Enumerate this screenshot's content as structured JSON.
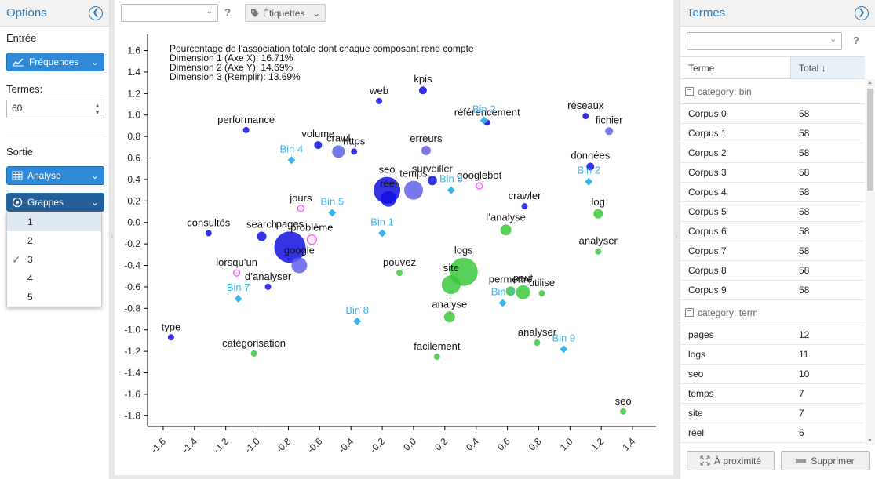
{
  "left": {
    "title": "Options",
    "collapse_icon": "chevron-left-circle-icon",
    "input_label": "Entrée",
    "input_button": "Fréquences",
    "terms_label": "Termes:",
    "terms_value": "60",
    "output_label": "Sortie",
    "analysis_button": "Analyse",
    "clusters_button": "Grappes",
    "cluster_options": [
      "1",
      "2",
      "3",
      "4",
      "5"
    ],
    "selected_cluster": "3"
  },
  "center": {
    "tags_button": "Étiquettes",
    "help": "?"
  },
  "right": {
    "title": "Termes",
    "help": "?",
    "col_term": "Terme",
    "col_total": "Total",
    "groups": [
      {
        "label": "category: bin",
        "rows": [
          {
            "term": "Corpus 0",
            "total": "58"
          },
          {
            "term": "Corpus 1",
            "total": "58"
          },
          {
            "term": "Corpus 2",
            "total": "58"
          },
          {
            "term": "Corpus 3",
            "total": "58"
          },
          {
            "term": "Corpus 4",
            "total": "58"
          },
          {
            "term": "Corpus 5",
            "total": "58"
          },
          {
            "term": "Corpus 6",
            "total": "58"
          },
          {
            "term": "Corpus 7",
            "total": "58"
          },
          {
            "term": "Corpus 8",
            "total": "58"
          },
          {
            "term": "Corpus 9",
            "total": "58"
          }
        ]
      },
      {
        "label": "category: term",
        "rows": [
          {
            "term": "pages",
            "total": "12"
          },
          {
            "term": "logs",
            "total": "11"
          },
          {
            "term": "seo",
            "total": "10"
          },
          {
            "term": "temps",
            "total": "7"
          },
          {
            "term": "site",
            "total": "7"
          },
          {
            "term": "réel",
            "total": "6"
          }
        ]
      }
    ],
    "proximity_button": "À proximité",
    "delete_button": "Supprimer"
  },
  "chart_data": {
    "type": "scatter",
    "header_lines": [
      "Pourcentage de l’association totale dont chaque composant rend compte",
      "Dimension 1 (Axe X): 16.71%",
      "Dimension 2 (Axe Y): 14.69%",
      "Dimension 3 (Remplir): 13.69%"
    ],
    "xlim": [
      -1.7,
      1.55
    ],
    "ylim": [
      -1.9,
      1.75
    ],
    "xticks": [
      -1.6,
      -1.4,
      -1.2,
      -1.0,
      -0.8,
      -0.6,
      -0.4,
      -0.2,
      0.0,
      0.2,
      0.4,
      0.6,
      0.8,
      1.0,
      1.2,
      1.4
    ],
    "yticks": [
      -1.8,
      -1.6,
      -1.4,
      -1.2,
      -1.0,
      -0.8,
      -0.6,
      -0.4,
      -0.2,
      0.0,
      0.2,
      0.4,
      0.6,
      0.8,
      1.0,
      1.2,
      1.4,
      1.6
    ],
    "colors": {
      "blue": "#1010e0",
      "blue_light": "#6060e8",
      "green": "#3cc83c",
      "pink": "#ff50ff",
      "bin": "#38b4ec"
    },
    "terms": [
      {
        "label": "web",
        "x": -0.22,
        "y": 1.13,
        "r": 4,
        "color": "blue"
      },
      {
        "label": "kpis",
        "x": 0.06,
        "y": 1.23,
        "r": 5,
        "color": "blue"
      },
      {
        "label": "référencement",
        "x": 0.47,
        "y": 0.93,
        "r": 4,
        "color": "blue"
      },
      {
        "label": "réseaux",
        "x": 1.1,
        "y": 0.99,
        "r": 4,
        "color": "blue"
      },
      {
        "label": "fichier",
        "x": 1.25,
        "y": 0.85,
        "r": 5,
        "color": "blue_light"
      },
      {
        "label": "performance",
        "x": -1.07,
        "y": 0.86,
        "r": 4,
        "color": "blue"
      },
      {
        "label": "volume",
        "x": -0.61,
        "y": 0.72,
        "r": 5,
        "color": "blue"
      },
      {
        "label": "crawl",
        "x": -0.48,
        "y": 0.66,
        "r": 8,
        "color": "blue_light"
      },
      {
        "label": "https",
        "x": -0.38,
        "y": 0.66,
        "r": 4,
        "color": "blue"
      },
      {
        "label": "erreurs",
        "x": 0.08,
        "y": 0.67,
        "r": 6,
        "color": "blue_light"
      },
      {
        "label": "données",
        "x": 1.13,
        "y": 0.52,
        "r": 5,
        "color": "blue"
      },
      {
        "label": "surveiller",
        "x": 0.12,
        "y": 0.39,
        "r": 6,
        "color": "blue"
      },
      {
        "label": "seo",
        "x": -0.17,
        "y": 0.3,
        "r": 17,
        "color": "blue"
      },
      {
        "label": "réel",
        "x": -0.16,
        "y": 0.22,
        "r": 10,
        "color": "blue"
      },
      {
        "label": "temps",
        "x": 0.0,
        "y": 0.3,
        "r": 12,
        "color": "blue_light"
      },
      {
        "label": "googlebot",
        "x": 0.42,
        "y": 0.34,
        "r": 4,
        "color": "pink"
      },
      {
        "label": "crawler",
        "x": 0.71,
        "y": 0.15,
        "r": 4,
        "color": "blue"
      },
      {
        "label": "jours",
        "x": -0.72,
        "y": 0.13,
        "r": 4,
        "color": "pink"
      },
      {
        "label": "log",
        "x": 1.18,
        "y": 0.08,
        "r": 6,
        "color": "green"
      },
      {
        "label": "consultés",
        "x": -1.31,
        "y": -0.1,
        "r": 4,
        "color": "blue"
      },
      {
        "label": "search",
        "x": -0.97,
        "y": -0.13,
        "r": 6,
        "color": "blue"
      },
      {
        "label": "pages",
        "x": -0.79,
        "y": -0.23,
        "r": 20,
        "color": "blue"
      },
      {
        "label": "problème",
        "x": -0.65,
        "y": -0.16,
        "r": 6,
        "color": "pink"
      },
      {
        "label": "google",
        "x": -0.73,
        "y": -0.4,
        "r": 10,
        "color": "blue_light"
      },
      {
        "label": "l’analyse",
        "x": 0.59,
        "y": -0.07,
        "r": 7,
        "color": "green"
      },
      {
        "label": "analyser",
        "x": 1.18,
        "y": -0.27,
        "r": 4,
        "color": "green"
      },
      {
        "label": "lorsqu’un",
        "x": -1.13,
        "y": -0.47,
        "r": 4,
        "color": "pink"
      },
      {
        "label": "d’analyser",
        "x": -0.93,
        "y": -0.6,
        "r": 4,
        "color": "blue"
      },
      {
        "label": "pouvez",
        "x": -0.09,
        "y": -0.47,
        "r": 4,
        "color": "green"
      },
      {
        "label": "logs",
        "x": 0.32,
        "y": -0.46,
        "r": 18,
        "color": "green"
      },
      {
        "label": "site",
        "x": 0.24,
        "y": -0.58,
        "r": 12,
        "color": "green"
      },
      {
        "label": "permettre",
        "x": 0.62,
        "y": -0.64,
        "r": 6,
        "color": "green"
      },
      {
        "label": "peut",
        "x": 0.7,
        "y": -0.65,
        "r": 9,
        "color": "green"
      },
      {
        "label": "utilise",
        "x": 0.82,
        "y": -0.66,
        "r": 4,
        "color": "green"
      },
      {
        "label": "analyse",
        "x": 0.23,
        "y": -0.88,
        "r": 7,
        "color": "green"
      },
      {
        "label": "type",
        "x": -1.55,
        "y": -1.07,
        "r": 4,
        "color": "blue"
      },
      {
        "label": "catégorisation",
        "x": -1.02,
        "y": -1.22,
        "r": 4,
        "color": "green"
      },
      {
        "label": "facilement",
        "x": 0.15,
        "y": -1.25,
        "r": 4,
        "color": "green"
      },
      {
        "label": "analyser",
        "x": 0.79,
        "y": -1.12,
        "r": 4,
        "color": "green"
      },
      {
        "label": "seo",
        "x": 1.34,
        "y": -1.76,
        "r": 4,
        "color": "green"
      }
    ],
    "bins": [
      {
        "label": "Bin 2",
        "x": 0.45,
        "y": 0.95
      },
      {
        "label": "Bin 4",
        "x": -0.78,
        "y": 0.58
      },
      {
        "label": "Bin 6",
        "x": 0.24,
        "y": 0.3
      },
      {
        "label": "Bin 2",
        "x": 1.12,
        "y": 0.38
      },
      {
        "label": "Bin 5",
        "x": -0.52,
        "y": 0.09
      },
      {
        "label": "Bin 1",
        "x": -0.2,
        "y": -0.1
      },
      {
        "label": "Bin 7",
        "x": -1.12,
        "y": -0.71
      },
      {
        "label": "Bin 3",
        "x": 0.57,
        "y": -0.75
      },
      {
        "label": "Bin 8",
        "x": -0.36,
        "y": -0.92
      },
      {
        "label": "Bin 9",
        "x": 0.96,
        "y": -1.18
      }
    ]
  }
}
